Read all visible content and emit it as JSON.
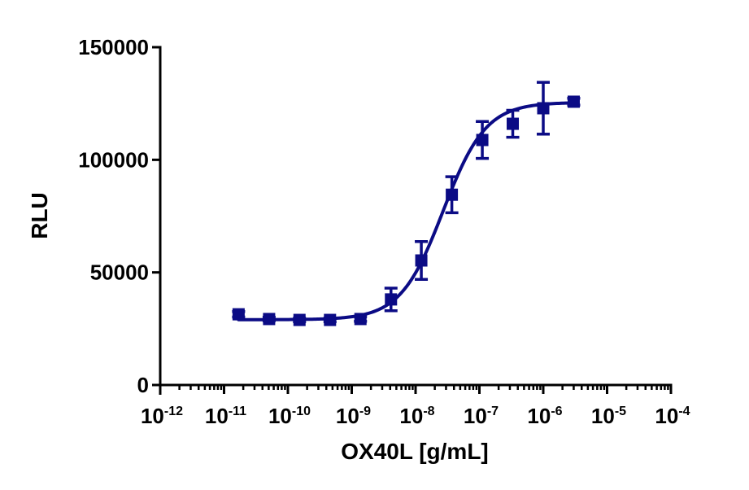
{
  "chart_data": {
    "type": "scatter",
    "title": "",
    "xlabel": "OX40L [g/mL]",
    "ylabel": "RLU",
    "xscale": "log",
    "xlim": [
      1e-12,
      0.0001
    ],
    "ylim": [
      0,
      150000
    ],
    "grid": false,
    "legend": null,
    "color": "#0b0b85",
    "x_ticks": [
      {
        "base": "10",
        "exp": "-12",
        "value": 1e-12
      },
      {
        "base": "10",
        "exp": "-11",
        "value": 1e-11
      },
      {
        "base": "10",
        "exp": "-10",
        "value": 1e-10
      },
      {
        "base": "10",
        "exp": "-9",
        "value": 1e-09
      },
      {
        "base": "10",
        "exp": "-8",
        "value": 1e-08
      },
      {
        "base": "10",
        "exp": "-7",
        "value": 1e-07
      },
      {
        "base": "10",
        "exp": "-6",
        "value": 1e-06
      },
      {
        "base": "10",
        "exp": "-5",
        "value": 1e-05
      },
      {
        "base": "10",
        "exp": "-4",
        "value": 0.0001
      }
    ],
    "y_ticks": [
      {
        "label": "0",
        "value": 0
      },
      {
        "label": "50000",
        "value": 50000
      },
      {
        "label": "100000",
        "value": 100000
      },
      {
        "label": "150000",
        "value": 150000
      }
    ],
    "series": [
      {
        "name": "OX40L",
        "marker": "square",
        "x": [
          1.69e-11,
          5.08e-11,
          1.52e-10,
          4.57e-10,
          1.37e-09,
          4.12e-09,
          1.23e-08,
          3.7e-08,
          1.11e-07,
          3.33e-07,
          1e-06,
          3e-06
        ],
        "y": [
          31400,
          29300,
          28900,
          28900,
          29300,
          38000,
          55300,
          84500,
          108800,
          116000,
          122900,
          125800
        ],
        "yerr": [
          1200,
          800,
          800,
          800,
          1000,
          5000,
          8400,
          8000,
          8200,
          6000,
          11500,
          1500
        ]
      }
    ],
    "fit": {
      "model": "4PL",
      "bottom": 29000,
      "top": 125500,
      "ec50": 2.7e-08,
      "hill": 1.3,
      "x_range": [
        1.69e-11,
        3e-06
      ]
    }
  }
}
